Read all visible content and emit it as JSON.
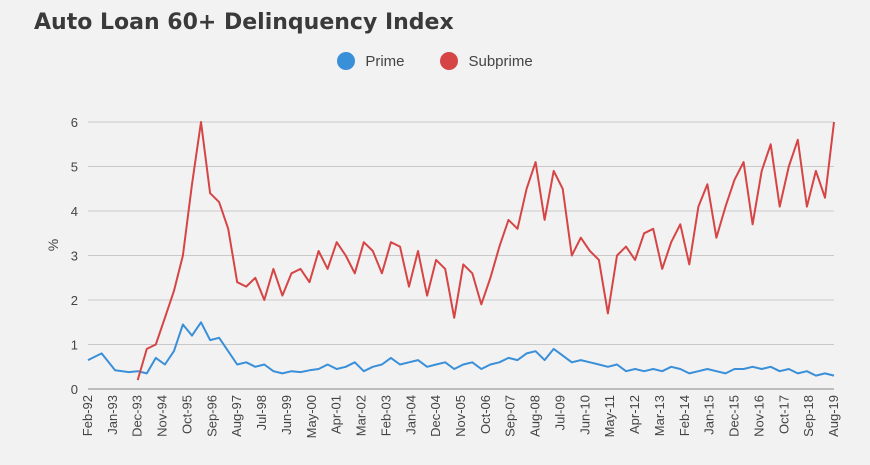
{
  "chart_data": {
    "type": "line",
    "title": "Auto Loan 60+ Delinquency Index",
    "ylabel": "%",
    "xlabel": "",
    "ylim": [
      0,
      6
    ],
    "yticks": [
      0,
      1,
      2,
      3,
      4,
      5,
      6
    ],
    "grid": true,
    "legend_position": "top-center",
    "x_tick_labels": [
      "Feb-92",
      "Jan-93",
      "Dec-93",
      "Nov-94",
      "Oct-95",
      "Sep-96",
      "Aug-97",
      "Jul-98",
      "Jun-99",
      "May-00",
      "Apr-01",
      "Mar-02",
      "Feb-03",
      "Jan-04",
      "Dec-04",
      "Nov-05",
      "Oct-06",
      "Sep-07",
      "Aug-08",
      "Jul-09",
      "Jun-10",
      "May-11",
      "Apr-12",
      "Mar-13",
      "Feb-14",
      "Jan-15",
      "Dec-15",
      "Nov-16",
      "Oct-17",
      "Sep-18",
      "Aug-19"
    ],
    "x": [
      "1992-02",
      "1992-08",
      "1993-02",
      "1993-08",
      "1993-12",
      "1994-04",
      "1994-08",
      "1994-12",
      "1995-04",
      "1995-08",
      "1995-12",
      "1996-04",
      "1996-08",
      "1996-12",
      "1997-04",
      "1997-08",
      "1997-12",
      "1998-04",
      "1998-08",
      "1998-12",
      "1999-04",
      "1999-08",
      "1999-12",
      "2000-04",
      "2000-08",
      "2000-12",
      "2001-04",
      "2001-08",
      "2001-12",
      "2002-04",
      "2002-08",
      "2002-12",
      "2003-04",
      "2003-08",
      "2003-12",
      "2004-04",
      "2004-08",
      "2004-12",
      "2005-04",
      "2005-08",
      "2005-12",
      "2006-04",
      "2006-08",
      "2006-12",
      "2007-04",
      "2007-08",
      "2007-12",
      "2008-04",
      "2008-08",
      "2008-12",
      "2009-04",
      "2009-08",
      "2009-12",
      "2010-04",
      "2010-08",
      "2010-12",
      "2011-04",
      "2011-08",
      "2011-12",
      "2012-04",
      "2012-08",
      "2012-12",
      "2013-04",
      "2013-08",
      "2013-12",
      "2014-04",
      "2014-08",
      "2014-12",
      "2015-04",
      "2015-08",
      "2015-12",
      "2016-04",
      "2016-08",
      "2016-12",
      "2017-04",
      "2017-08",
      "2017-12",
      "2018-04",
      "2018-08",
      "2018-12",
      "2019-04",
      "2019-08"
    ],
    "series": [
      {
        "name": "Prime",
        "color": "#3a8fd9",
        "values": [
          0.65,
          0.8,
          0.42,
          0.38,
          0.4,
          0.35,
          0.7,
          0.55,
          0.85,
          1.45,
          1.2,
          1.5,
          1.1,
          1.15,
          0.85,
          0.55,
          0.6,
          0.5,
          0.55,
          0.4,
          0.35,
          0.4,
          0.38,
          0.42,
          0.45,
          0.55,
          0.45,
          0.5,
          0.6,
          0.4,
          0.5,
          0.55,
          0.7,
          0.55,
          0.6,
          0.65,
          0.5,
          0.55,
          0.6,
          0.45,
          0.55,
          0.6,
          0.45,
          0.55,
          0.6,
          0.7,
          0.65,
          0.8,
          0.85,
          0.65,
          0.9,
          0.75,
          0.6,
          0.65,
          0.6,
          0.55,
          0.5,
          0.55,
          0.4,
          0.45,
          0.4,
          0.45,
          0.4,
          0.5,
          0.45,
          0.35,
          0.4,
          0.45,
          0.4,
          0.35,
          0.45,
          0.45,
          0.5,
          0.45,
          0.5,
          0.4,
          0.45,
          0.35,
          0.4,
          0.3,
          0.35,
          0.3
        ]
      },
      {
        "name": "Subprime",
        "color": "#d64545",
        "values": [
          null,
          null,
          null,
          null,
          0.2,
          0.9,
          1.0,
          1.6,
          2.2,
          3.0,
          4.6,
          6.0,
          4.4,
          4.2,
          3.6,
          2.4,
          2.3,
          2.5,
          2.0,
          2.7,
          2.1,
          2.6,
          2.7,
          2.4,
          3.1,
          2.7,
          3.3,
          3.0,
          2.6,
          3.3,
          3.1,
          2.6,
          3.3,
          3.2,
          2.3,
          3.1,
          2.1,
          2.9,
          2.7,
          1.6,
          2.8,
          2.6,
          1.9,
          2.5,
          3.2,
          3.8,
          3.6,
          4.5,
          5.1,
          3.8,
          4.9,
          4.5,
          3.0,
          3.4,
          3.1,
          2.9,
          1.7,
          3.0,
          3.2,
          2.9,
          3.5,
          3.6,
          2.7,
          3.3,
          3.7,
          2.8,
          4.1,
          4.6,
          3.4,
          4.1,
          4.7,
          5.1,
          3.7,
          4.9,
          5.5,
          4.1,
          5.0,
          5.6,
          4.1,
          4.9,
          4.3,
          6.0
        ]
      }
    ]
  }
}
